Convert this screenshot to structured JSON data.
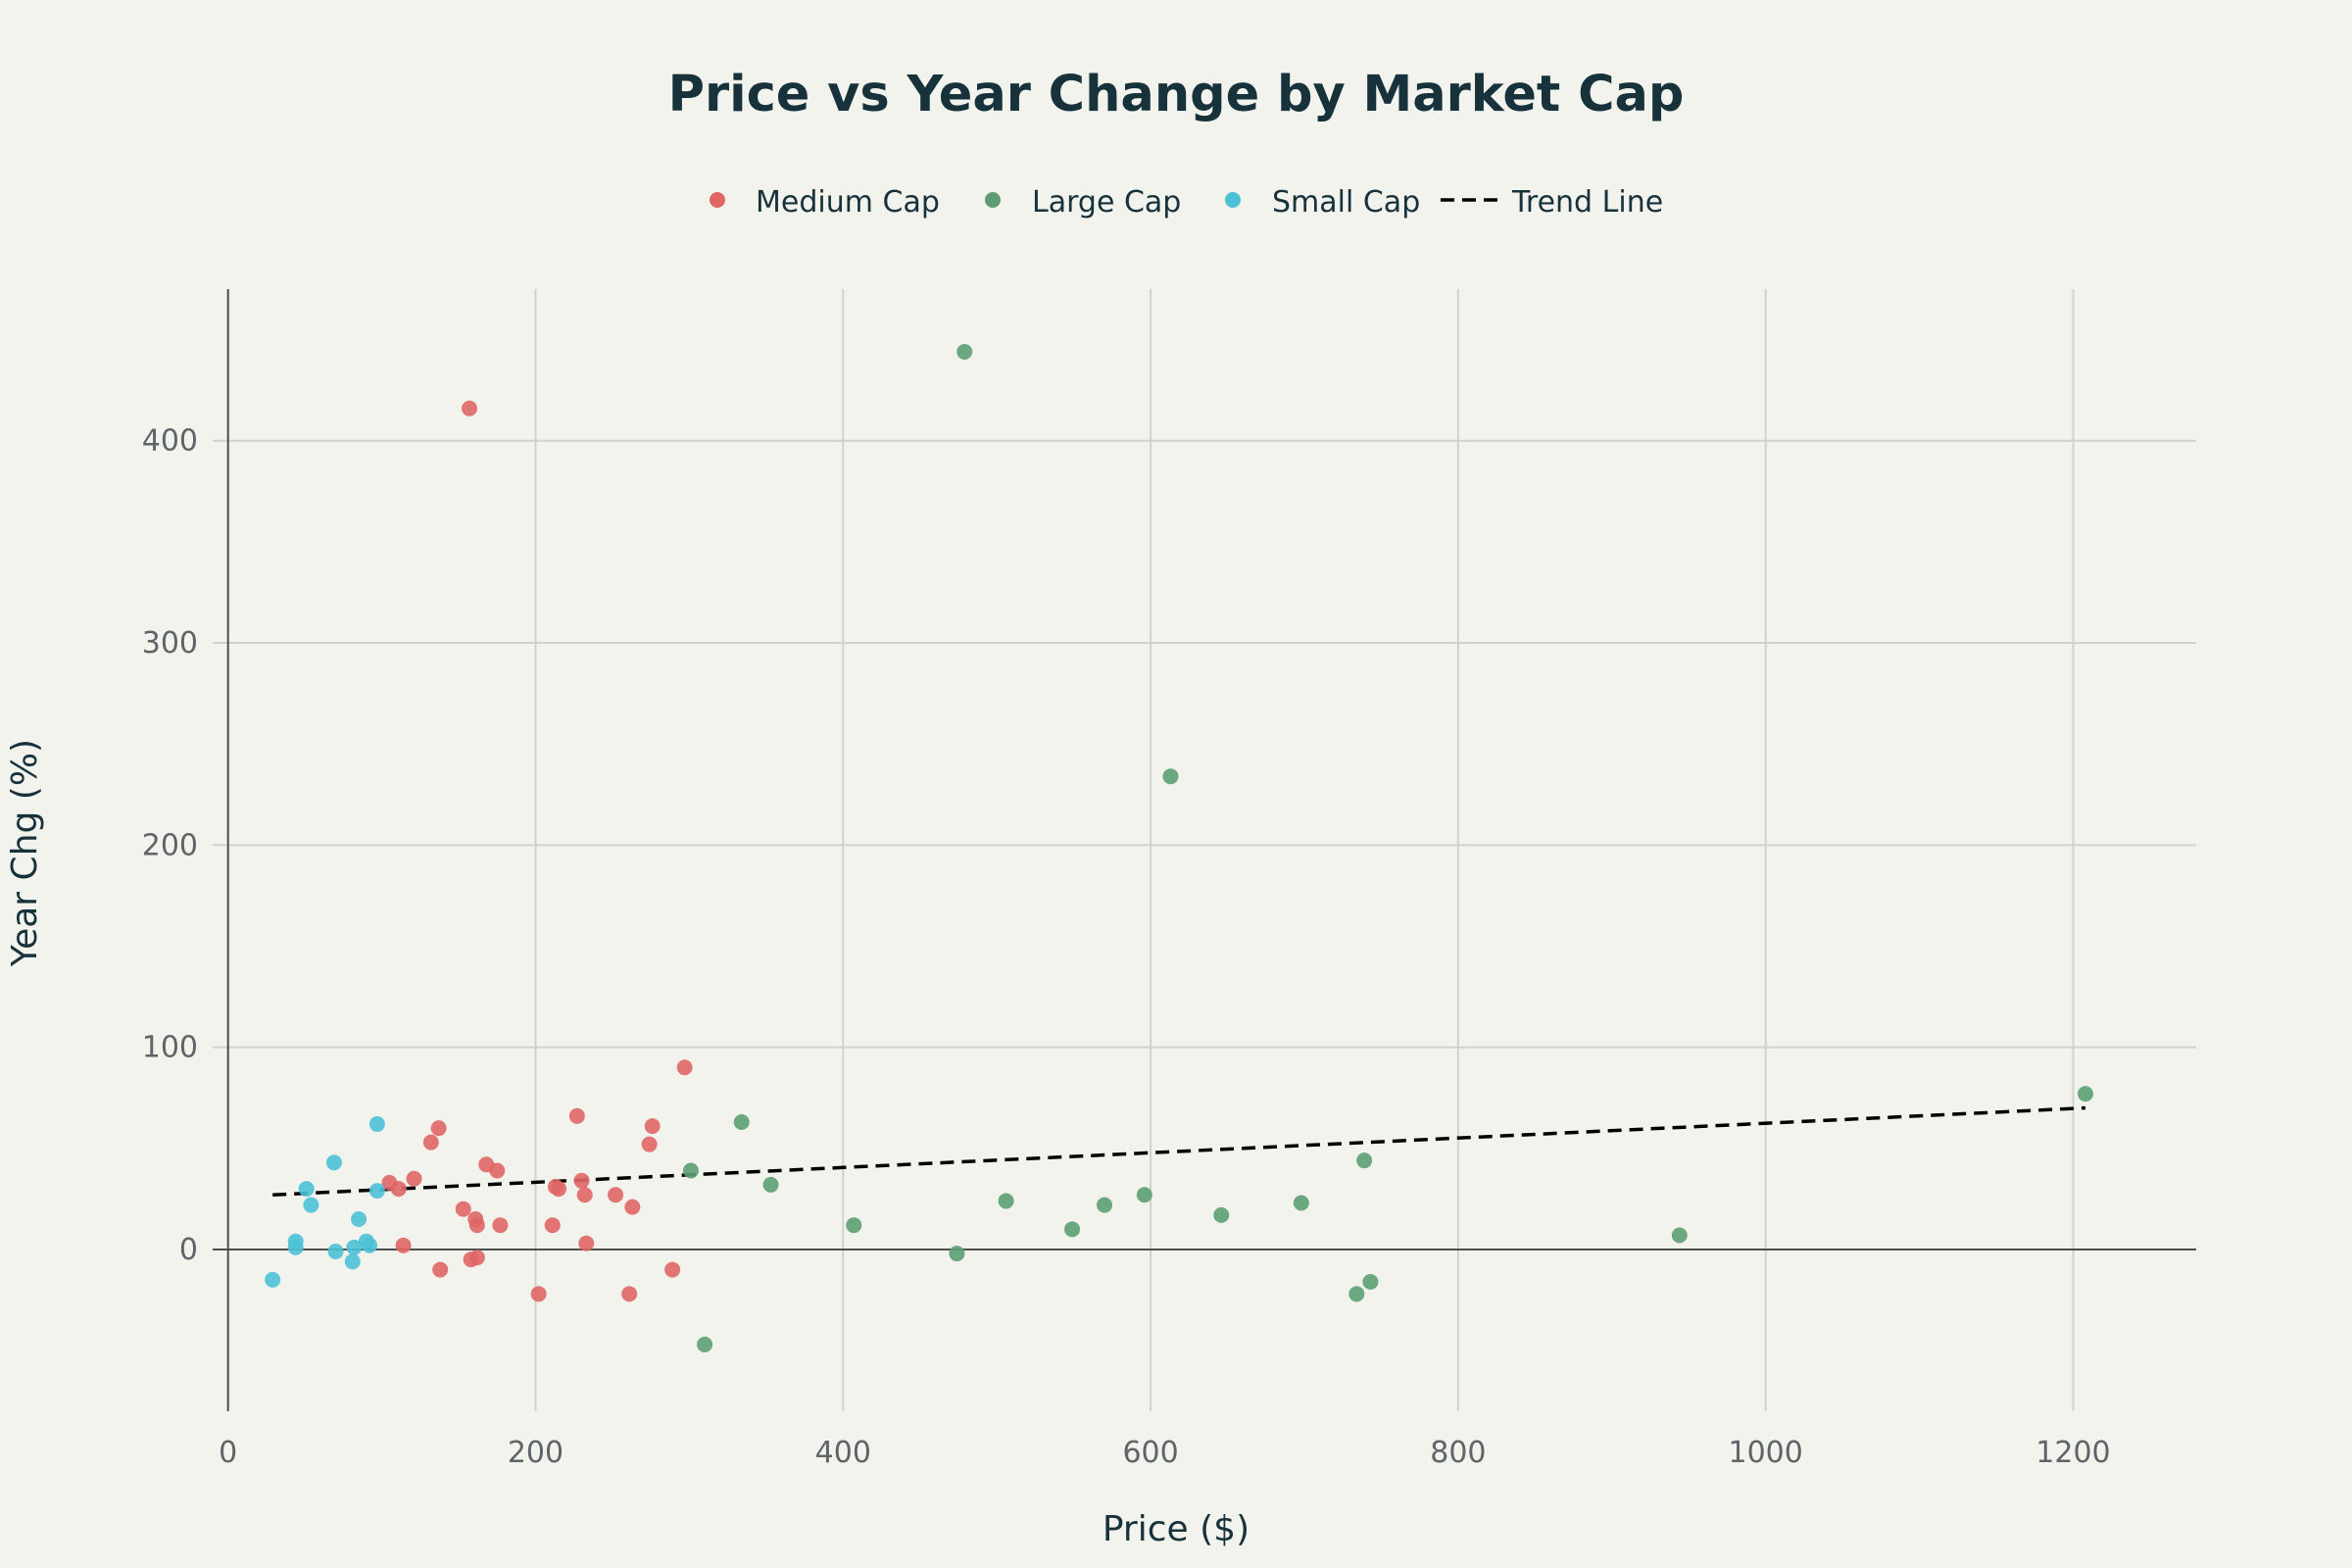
{
  "chart_data": {
    "type": "scatter",
    "title": "Price vs Year Change by Market Cap",
    "xlabel": "Price ($)",
    "ylabel": "Year Chg (%)",
    "xlim": [
      -10,
      1280
    ],
    "ylim": [
      -80,
      475
    ],
    "x_ticks": [
      0,
      200,
      400,
      600,
      800,
      1000,
      1200
    ],
    "y_ticks": [
      0,
      100,
      200,
      300,
      400
    ],
    "grid": true,
    "legend_position": "top-center",
    "series": [
      {
        "name": "Medium Cap",
        "color": "#e06666",
        "points": [
          [
            157,
            416
          ],
          [
            297,
            90
          ],
          [
            227,
            66
          ],
          [
            276,
            61
          ],
          [
            137,
            60
          ],
          [
            274,
            52
          ],
          [
            132,
            53
          ],
          [
            168,
            42
          ],
          [
            175,
            39
          ],
          [
            121,
            35
          ],
          [
            105,
            33
          ],
          [
            230,
            34
          ],
          [
            111,
            30
          ],
          [
            213,
            31
          ],
          [
            215,
            30
          ],
          [
            252,
            27
          ],
          [
            232,
            27
          ],
          [
            153,
            20
          ],
          [
            263,
            21
          ],
          [
            161,
            15
          ],
          [
            162,
            12
          ],
          [
            177,
            12
          ],
          [
            211,
            12
          ],
          [
            114,
            2
          ],
          [
            233,
            3
          ],
          [
            158,
            -5
          ],
          [
            162,
            -4
          ],
          [
            138,
            -10
          ],
          [
            289,
            -10
          ],
          [
            202,
            -22
          ],
          [
            261,
            -22
          ]
        ]
      },
      {
        "name": "Large Cap",
        "color": "#5c9e72",
        "points": [
          [
            479,
            444
          ],
          [
            613,
            234
          ],
          [
            1208,
            77
          ],
          [
            334,
            63
          ],
          [
            739,
            44
          ],
          [
            301,
            39
          ],
          [
            353,
            32
          ],
          [
            596,
            27
          ],
          [
            506,
            24
          ],
          [
            698,
            23
          ],
          [
            570,
            22
          ],
          [
            646,
            17
          ],
          [
            407,
            12
          ],
          [
            549,
            10
          ],
          [
            944,
            7
          ],
          [
            474,
            -2
          ],
          [
            743,
            -16
          ],
          [
            734,
            -22
          ],
          [
            310,
            -47
          ]
        ]
      },
      {
        "name": "Small Cap",
        "color": "#4cc1d6",
        "points": [
          [
            97,
            62
          ],
          [
            69,
            43
          ],
          [
            51,
            30
          ],
          [
            97,
            29
          ],
          [
            54,
            22
          ],
          [
            85,
            15
          ],
          [
            44,
            4
          ],
          [
            90,
            4
          ],
          [
            44,
            1
          ],
          [
            82,
            1
          ],
          [
            92,
            2
          ],
          [
            70,
            -1
          ],
          [
            81,
            -6
          ],
          [
            29,
            -15
          ]
        ]
      }
    ],
    "trend_line": {
      "name": "Trend Line",
      "color": "#000000",
      "x": [
        29,
        1208
      ],
      "y": [
        27,
        70
      ]
    }
  }
}
